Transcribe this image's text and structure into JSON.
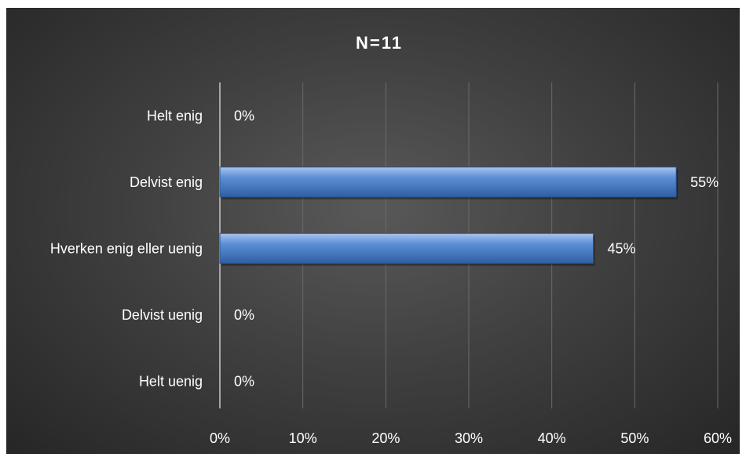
{
  "chart_data": {
    "type": "bar",
    "orientation": "horizontal",
    "title": "N=11",
    "categories": [
      "Helt enig",
      "Delvist enig",
      "Hverken enig eller uenig",
      "Delvist uenig",
      "Helt uenig"
    ],
    "values": [
      0,
      55,
      45,
      0,
      0
    ],
    "data_labels": [
      "0%",
      "55%",
      "45%",
      "0%",
      "0%"
    ],
    "xlim": [
      0,
      60
    ],
    "x_ticks": [
      0,
      10,
      20,
      30,
      40,
      50,
      60
    ],
    "x_tick_labels": [
      "0%",
      "10%",
      "20%",
      "30%",
      "40%",
      "50%",
      "60%"
    ],
    "xlabel": "",
    "ylabel": "",
    "grid": true,
    "legend": "none",
    "colors": {
      "bar": "#4f81bd",
      "background": "#404040",
      "text": "#ffffff",
      "grid": "#6a6a6a",
      "axis": "#a6a6a6"
    }
  }
}
